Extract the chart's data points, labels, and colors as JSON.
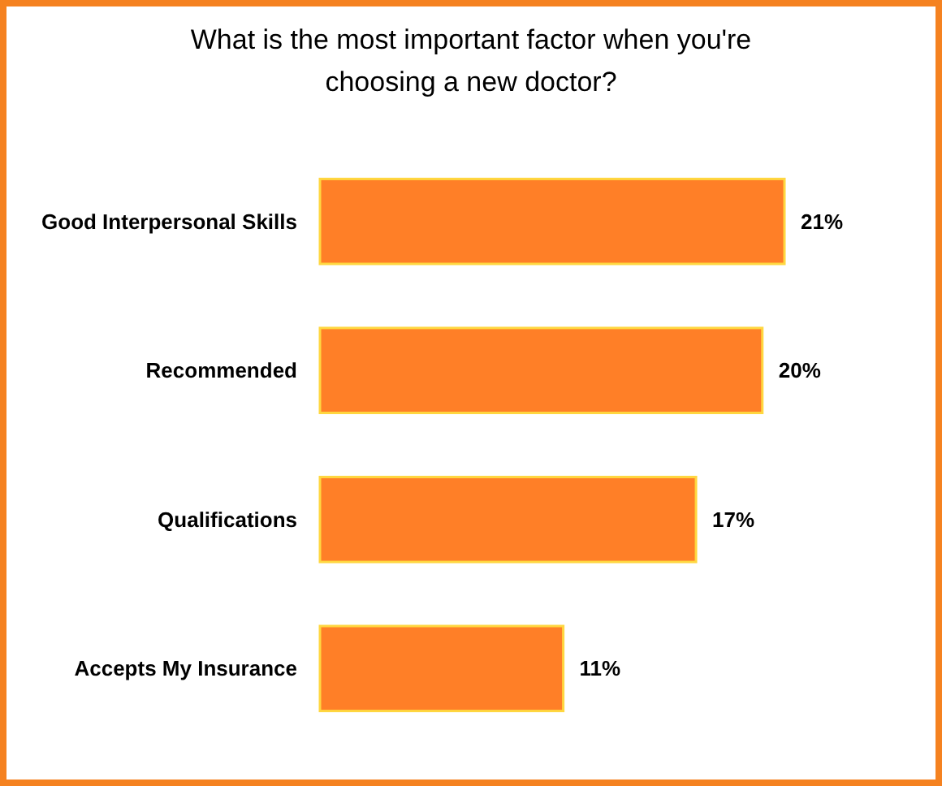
{
  "chart_data": {
    "type": "bar",
    "orientation": "horizontal",
    "title": "What is the most important factor when you're choosing a new doctor?",
    "categories": [
      "Good Interpersonal Skills",
      "Recommended",
      "Qualifications",
      "Accepts My Insurance"
    ],
    "values": [
      21,
      20,
      17,
      11
    ],
    "value_labels": [
      "21%",
      "20%",
      "17%",
      "11%"
    ],
    "color": "#ff7f27"
  }
}
